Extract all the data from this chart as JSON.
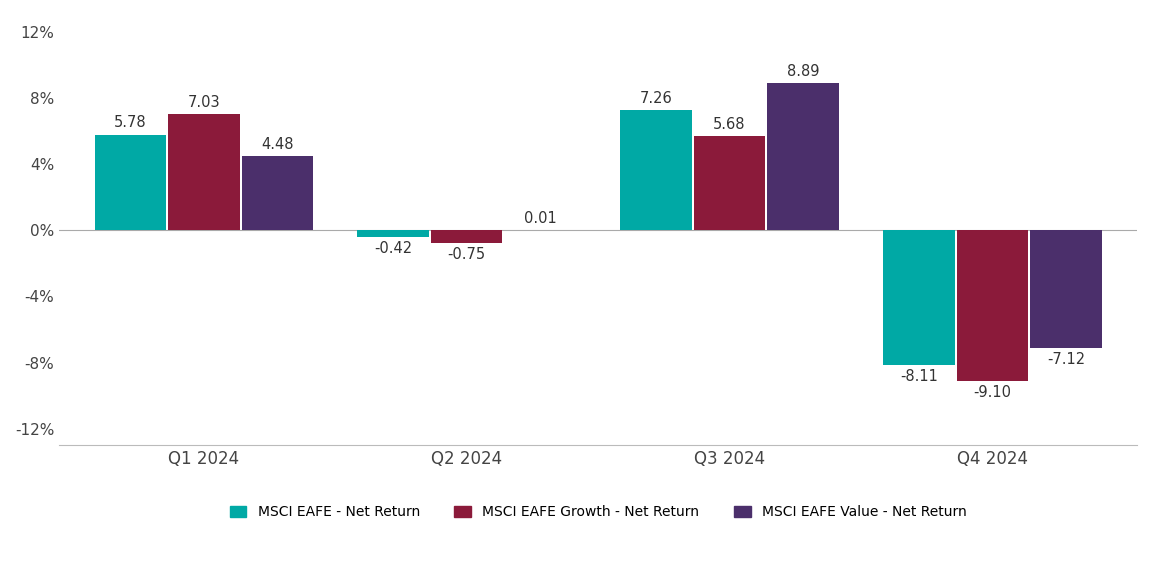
{
  "quarters": [
    "Q1 2024",
    "Q2 2024",
    "Q3 2024",
    "Q4 2024"
  ],
  "series": {
    "MSCI EAFE - Net Return": [
      5.78,
      -0.42,
      7.26,
      -8.11
    ],
    "MSCI EAFE Growth - Net Return": [
      7.03,
      -0.75,
      5.68,
      -9.1
    ],
    "MSCI EAFE Value - Net Return": [
      4.48,
      0.01,
      8.89,
      -7.12
    ]
  },
  "colors": {
    "MSCI EAFE - Net Return": "#00A9A5",
    "MSCI EAFE Growth - Net Return": "#8B1A3A",
    "MSCI EAFE Value - Net Return": "#4B2F6B"
  },
  "ylim": [
    -13,
    13
  ],
  "yticks": [
    -12,
    -8,
    -4,
    0,
    4,
    8,
    12
  ],
  "ytick_labels": [
    "-12%",
    "-8%",
    "-4%",
    "0%",
    "4%",
    "8%",
    "12%"
  ],
  "bar_width": 0.28,
  "label_fontsize": 10.5,
  "tick_fontsize": 11,
  "legend_fontsize": 10,
  "background_color": "#ffffff"
}
